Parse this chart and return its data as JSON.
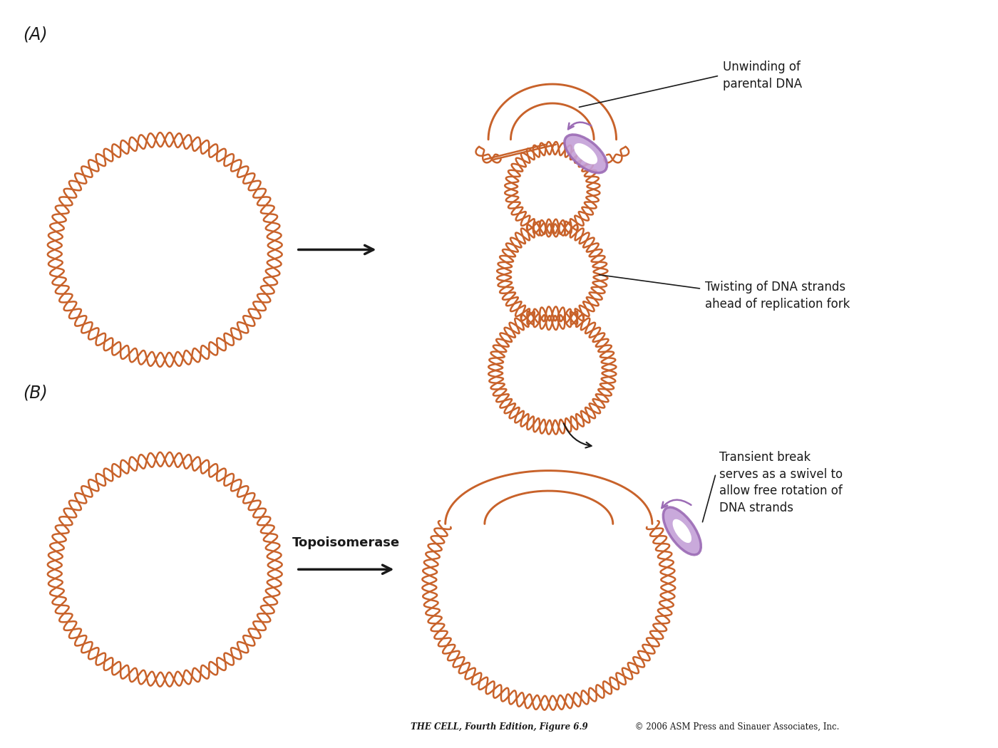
{
  "dna_color": "#C8622A",
  "dna_lw": 1.8,
  "purple_color": "#9B6BB5",
  "purple_fill": "#C4A0D8",
  "black_color": "#1a1a1a",
  "bg_color": "#ffffff",
  "label_A": "(A)",
  "label_B": "(B)",
  "annotation1_line1": "Unwinding of",
  "annotation1_line2": "parental DNA",
  "annotation2_line1": "Twisting of DNA strands",
  "annotation2_line2": "ahead of replication fork",
  "annotation3_line1": "Transient break",
  "annotation3_line2": "serves as a swivel to",
  "annotation3_line3": "allow free rotation of",
  "annotation3_line4": "DNA strands",
  "topo_label": "Topoisomerase",
  "caption_bold": "THE CELL, Fourth Edition, Figure 6.9",
  "caption_normal": " © 2006 ASM Press and Sinauer Associates, Inc."
}
